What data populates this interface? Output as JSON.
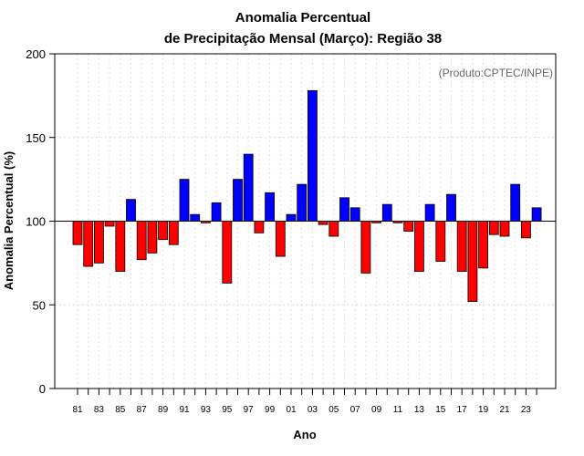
{
  "chart_data": {
    "type": "bar",
    "title_line1": "Anomalia Percentual",
    "title_line2": "de Precipitação Mensal (Março): Região 38",
    "xlabel": "Ano",
    "ylabel": "Anomalia Percentual (%)",
    "credit": "(Produto:CPTEC/INPE)",
    "baseline": 100,
    "ylim": [
      0,
      200
    ],
    "yticks": [
      "0",
      "50",
      "100",
      "150",
      "200"
    ],
    "colors": {
      "above": "#0000ff",
      "below": "#ff0000",
      "edge": "#000000"
    },
    "grid": true,
    "categories": [
      "1981",
      "1982",
      "1983",
      "1984",
      "1985",
      "1986",
      "1987",
      "1988",
      "1989",
      "1990",
      "1991",
      "1992",
      "1993",
      "1994",
      "1995",
      "1996",
      "1997",
      "1998",
      "1999",
      "2000",
      "2001",
      "2002",
      "2003",
      "2004",
      "2005",
      "2006",
      "2007",
      "2008",
      "2009",
      "2010",
      "2011",
      "2012",
      "2013",
      "2014",
      "2015",
      "2016",
      "2017",
      "2018",
      "2019",
      "2020",
      "2021",
      "2022",
      "2023",
      "2024"
    ],
    "xtick_labels": [
      "81",
      "83",
      "85",
      "87",
      "89",
      "91",
      "93",
      "95",
      "97",
      "99",
      "01",
      "03",
      "05",
      "07",
      "09",
      "11",
      "13",
      "15",
      "17",
      "19",
      "21",
      "23"
    ],
    "values": [
      86,
      73,
      75,
      97,
      70,
      113,
      77,
      81,
      89,
      86,
      125,
      104,
      99,
      111,
      63,
      125,
      140,
      93,
      117,
      79,
      104,
      122,
      178,
      98,
      91,
      114,
      108,
      69,
      99,
      110,
      99,
      94,
      70,
      110,
      76,
      116,
      70,
      52,
      72,
      92,
      91,
      122,
      90,
      108
    ]
  }
}
